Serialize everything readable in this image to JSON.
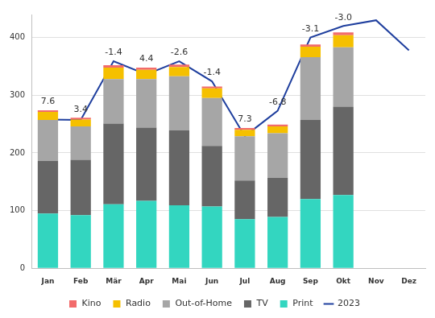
{
  "chart_data": {
    "type": "bar",
    "stacked": true,
    "categories": [
      "Jan",
      "Feb",
      "Mär",
      "Apr",
      "Mai",
      "Jun",
      "Jul",
      "Aug",
      "Sep",
      "Okt",
      "Nov",
      "Dez"
    ],
    "series": [
      {
        "name": "Kino",
        "color": "#f26b6b",
        "values": [
          3,
          3,
          4,
          4,
          4,
          3,
          3,
          3,
          4,
          5,
          null,
          null
        ]
      },
      {
        "name": "Radio",
        "color": "#f5c000",
        "values": [
          14,
          12,
          20,
          16,
          16,
          17,
          11,
          12,
          18,
          21,
          null,
          null
        ]
      },
      {
        "name": "Out-of-Home",
        "color": "#a6a6a6",
        "values": [
          71,
          58,
          77,
          84,
          94,
          83,
          77,
          77,
          109,
          103,
          null,
          null
        ]
      },
      {
        "name": "TV",
        "color": "#666666",
        "values": [
          91,
          96,
          140,
          127,
          130,
          105,
          67,
          68,
          137,
          153,
          null,
          null
        ]
      },
      {
        "name": "Print",
        "color": "#33d6c0",
        "values": [
          95,
          92,
          111,
          117,
          109,
          107,
          85,
          89,
          120,
          127,
          null,
          null
        ]
      },
      {
        "name": "2023",
        "type": "line",
        "color": "#1f3f9e",
        "values": [
          258,
          257,
          359,
          336,
          359,
          324,
          229,
          273,
          400,
          420,
          430,
          378
        ]
      }
    ],
    "annotations": [
      "7.6",
      "3.4",
      "-1.4",
      "4.4",
      "-2.6",
      "-1.4",
      "7.3",
      "-6.8",
      "-3.1",
      "-3.0",
      null,
      null
    ],
    "ylim": [
      0,
      440
    ],
    "yticks": [
      0,
      100,
      200,
      300,
      400
    ],
    "grid": true,
    "legend": "bottom"
  }
}
